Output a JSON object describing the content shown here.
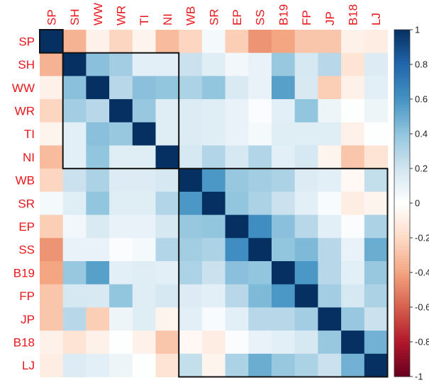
{
  "chart_data": {
    "type": "heatmap",
    "title": "",
    "variables": [
      "SP",
      "SH",
      "WW",
      "WR",
      "TI",
      "NI",
      "WB",
      "SR",
      "EP",
      "SS",
      "B19",
      "FP",
      "JP",
      "B18",
      "LJ"
    ],
    "matrix": [
      [
        1.0,
        -0.35,
        -0.08,
        -0.22,
        -0.06,
        -0.32,
        -0.22,
        0.05,
        -0.25,
        -0.45,
        -0.4,
        -0.28,
        -0.28,
        -0.08,
        -0.1
      ],
      [
        -0.35,
        1.0,
        0.42,
        0.35,
        0.12,
        0.12,
        0.22,
        0.14,
        0.06,
        0.1,
        0.38,
        0.18,
        0.28,
        -0.15,
        0.15
      ],
      [
        -0.08,
        0.42,
        1.0,
        0.28,
        0.42,
        0.4,
        0.32,
        0.4,
        0.16,
        0.1,
        0.55,
        0.17,
        -0.25,
        -0.08,
        0.12
      ],
      [
        -0.22,
        0.35,
        0.28,
        1.0,
        0.38,
        0.14,
        0.15,
        0.14,
        0.1,
        0.02,
        0.12,
        0.4,
        0.08,
        0.01,
        0.08
      ],
      [
        -0.06,
        0.12,
        0.42,
        0.38,
        1.0,
        0.14,
        0.15,
        0.14,
        0.1,
        0.05,
        0.14,
        0.14,
        0.14,
        -0.08,
        0.01
      ],
      [
        -0.32,
        0.12,
        0.4,
        0.14,
        0.14,
        1.0,
        0.18,
        0.3,
        0.18,
        0.3,
        0.12,
        0.18,
        -0.06,
        -0.28,
        -0.15
      ],
      [
        -0.22,
        0.22,
        0.32,
        0.15,
        0.15,
        0.18,
        1.0,
        0.58,
        0.38,
        0.35,
        0.32,
        0.15,
        0.12,
        -0.04,
        0.24
      ],
      [
        0.05,
        0.14,
        0.4,
        0.14,
        0.14,
        0.3,
        0.58,
        1.0,
        0.4,
        0.32,
        0.22,
        0.12,
        0.03,
        -0.1,
        -0.06
      ],
      [
        -0.25,
        0.06,
        0.16,
        0.1,
        0.1,
        0.18,
        0.38,
        0.4,
        1.0,
        0.62,
        0.42,
        0.28,
        0.12,
        0.02,
        0.32
      ],
      [
        -0.45,
        0.1,
        0.1,
        0.02,
        0.05,
        0.3,
        0.35,
        0.32,
        0.62,
        1.0,
        0.4,
        0.45,
        0.28,
        0.1,
        0.5
      ],
      [
        -0.4,
        0.38,
        0.55,
        0.12,
        0.14,
        0.12,
        0.32,
        0.22,
        0.42,
        0.4,
        1.0,
        0.58,
        0.28,
        0.12,
        0.38
      ],
      [
        -0.28,
        0.18,
        0.17,
        0.4,
        0.14,
        0.18,
        0.15,
        0.12,
        0.28,
        0.45,
        0.58,
        1.0,
        0.35,
        0.18,
        0.32
      ],
      [
        -0.28,
        0.28,
        -0.25,
        0.08,
        0.14,
        -0.06,
        0.12,
        0.03,
        0.12,
        0.28,
        0.28,
        0.35,
        1.0,
        0.38,
        0.22
      ],
      [
        -0.08,
        -0.15,
        -0.08,
        0.01,
        -0.08,
        -0.28,
        -0.04,
        -0.1,
        0.02,
        0.1,
        0.12,
        0.18,
        0.38,
        1.0,
        0.48
      ],
      [
        -0.1,
        0.15,
        0.12,
        0.08,
        0.01,
        -0.15,
        0.24,
        -0.06,
        0.32,
        0.5,
        0.38,
        0.32,
        0.22,
        0.48,
        1.0
      ]
    ],
    "clusters": [
      [
        0,
        0
      ],
      [
        1,
        5
      ],
      [
        6,
        14
      ]
    ],
    "colorbar": {
      "range": [
        -1,
        1
      ],
      "ticks": [
        "1",
        "0.8",
        "0.6",
        "0.4",
        "0.2",
        "0",
        "-0.2",
        "-0.4",
        "-0.6",
        "-0.8",
        "-1"
      ],
      "colors": [
        "#67001F",
        "#B2182B",
        "#D6604D",
        "#F4A582",
        "#FDDBC7",
        "#FFFFFF",
        "#D1E5F0",
        "#92C5DE",
        "#4393C3",
        "#2166AC",
        "#053061"
      ]
    },
    "grid": false,
    "legend": "right"
  }
}
